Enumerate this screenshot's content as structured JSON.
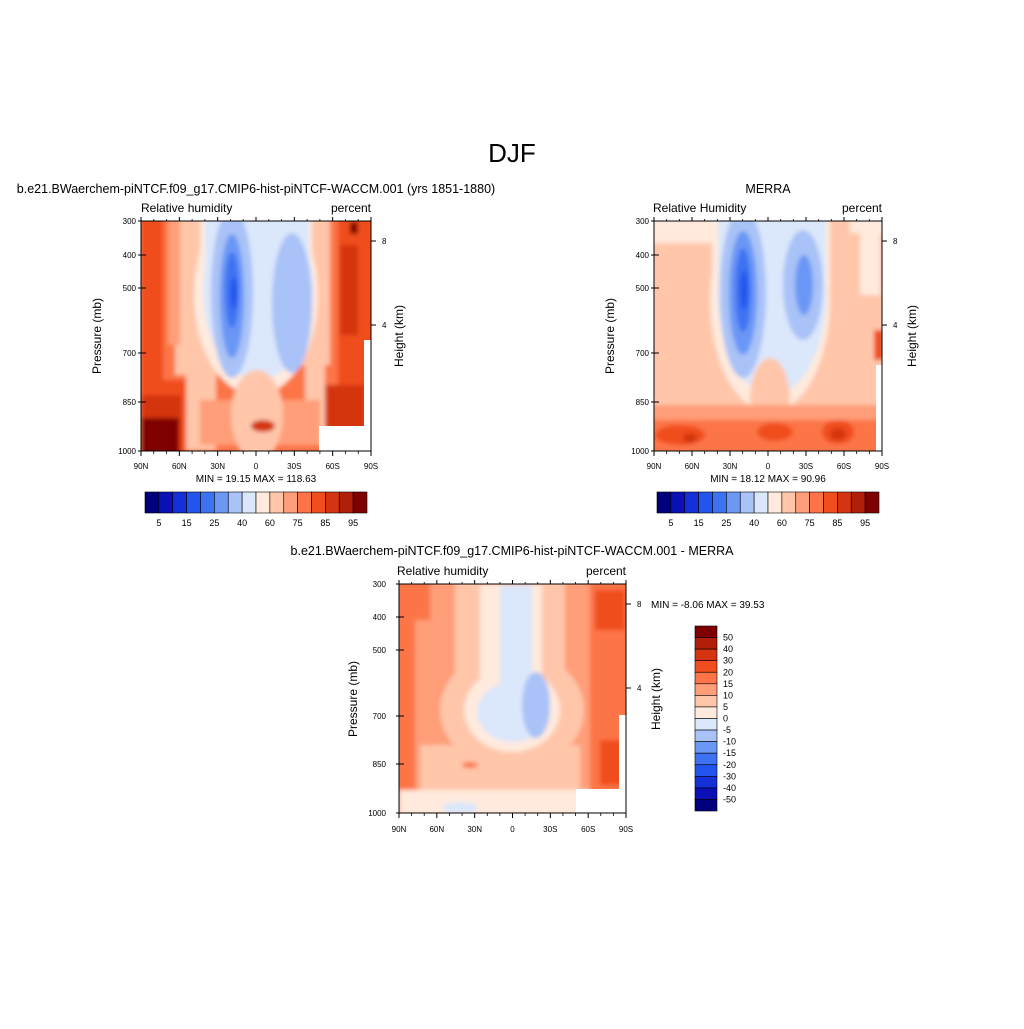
{
  "figure": {
    "title": "DJF"
  },
  "colors": {
    "absolute": [
      "#00007f",
      "#0a10b5",
      "#1430d6",
      "#2255ee",
      "#3d73f2",
      "#6b97f5",
      "#a9c2f7",
      "#dbe7fb",
      "#ffeadd",
      "#ffc6aa",
      "#ff9e78",
      "#fc7447",
      "#f04e1e",
      "#d43410",
      "#b21f08",
      "#7f0000"
    ],
    "difference": [
      "#00007f",
      "#0a10b5",
      "#1430d6",
      "#2255ee",
      "#3d73f2",
      "#6b97f5",
      "#a9c2f7",
      "#dbe7fb",
      "#ffeadd",
      "#ffc6aa",
      "#ff9e78",
      "#fc7447",
      "#f04e1e",
      "#d43410",
      "#b21f08",
      "#7f0000"
    ]
  },
  "chart_data": [
    {
      "type": "heatmap",
      "title": "b.e21.BWaerchem-piNTCF.f09_g17.CMIP6-hist-piNTCF-WACCM.001 (yrs 1851-1880)",
      "left_label": "Relative humidity",
      "right_label": "percent",
      "ylabel": "Pressure (mb)",
      "y2label": "Height (km)",
      "x_ticks": [
        "90N",
        "60N",
        "30N",
        "0",
        "30S",
        "60S",
        "90S"
      ],
      "y_ticks": [
        "300",
        "400",
        "500",
        "700",
        "850",
        "1000"
      ],
      "y2_ticks": [
        "8",
        "4"
      ],
      "stats": "MIN =  19.15  MAX = 118.63",
      "colorbar": {
        "orientation": "horizontal",
        "labels": [
          "5",
          "15",
          "25",
          "40",
          "60",
          "75",
          "85",
          "95"
        ]
      }
    },
    {
      "type": "heatmap",
      "title": "MERRA",
      "left_label": "Relative Humidity",
      "right_label": "percent",
      "ylabel": "Pressure (mb)",
      "y2label": "Height (km)",
      "x_ticks": [
        "90N",
        "60N",
        "30N",
        "0",
        "30S",
        "60S",
        "90S"
      ],
      "y_ticks": [
        "300",
        "400",
        "500",
        "700",
        "850",
        "1000"
      ],
      "y2_ticks": [
        "8",
        "4"
      ],
      "stats": "MIN =  18.12  MAX =  90.96",
      "colorbar": {
        "orientation": "horizontal",
        "labels": [
          "5",
          "15",
          "25",
          "40",
          "60",
          "75",
          "85",
          "95"
        ]
      }
    },
    {
      "type": "heatmap",
      "title": "b.e21.BWaerchem-piNTCF.f09_g17.CMIP6-hist-piNTCF-WACCM.001 - MERRA",
      "left_label": "Relative humidity",
      "right_label": "percent",
      "ylabel": "Pressure (mb)",
      "y2label": "Height (km)",
      "x_ticks": [
        "90N",
        "60N",
        "30N",
        "0",
        "30S",
        "60S",
        "90S"
      ],
      "y_ticks": [
        "300",
        "400",
        "500",
        "700",
        "850",
        "1000"
      ],
      "y2_ticks": [
        "8",
        "4"
      ],
      "stats": "MIN = -8.06  MAX = 39.53",
      "colorbar": {
        "orientation": "vertical",
        "labels": [
          "50",
          "40",
          "30",
          "20",
          "15",
          "10",
          "5",
          "0",
          "-5",
          "-10",
          "-15",
          "-20",
          "-30",
          "-40",
          "-50"
        ]
      }
    }
  ]
}
